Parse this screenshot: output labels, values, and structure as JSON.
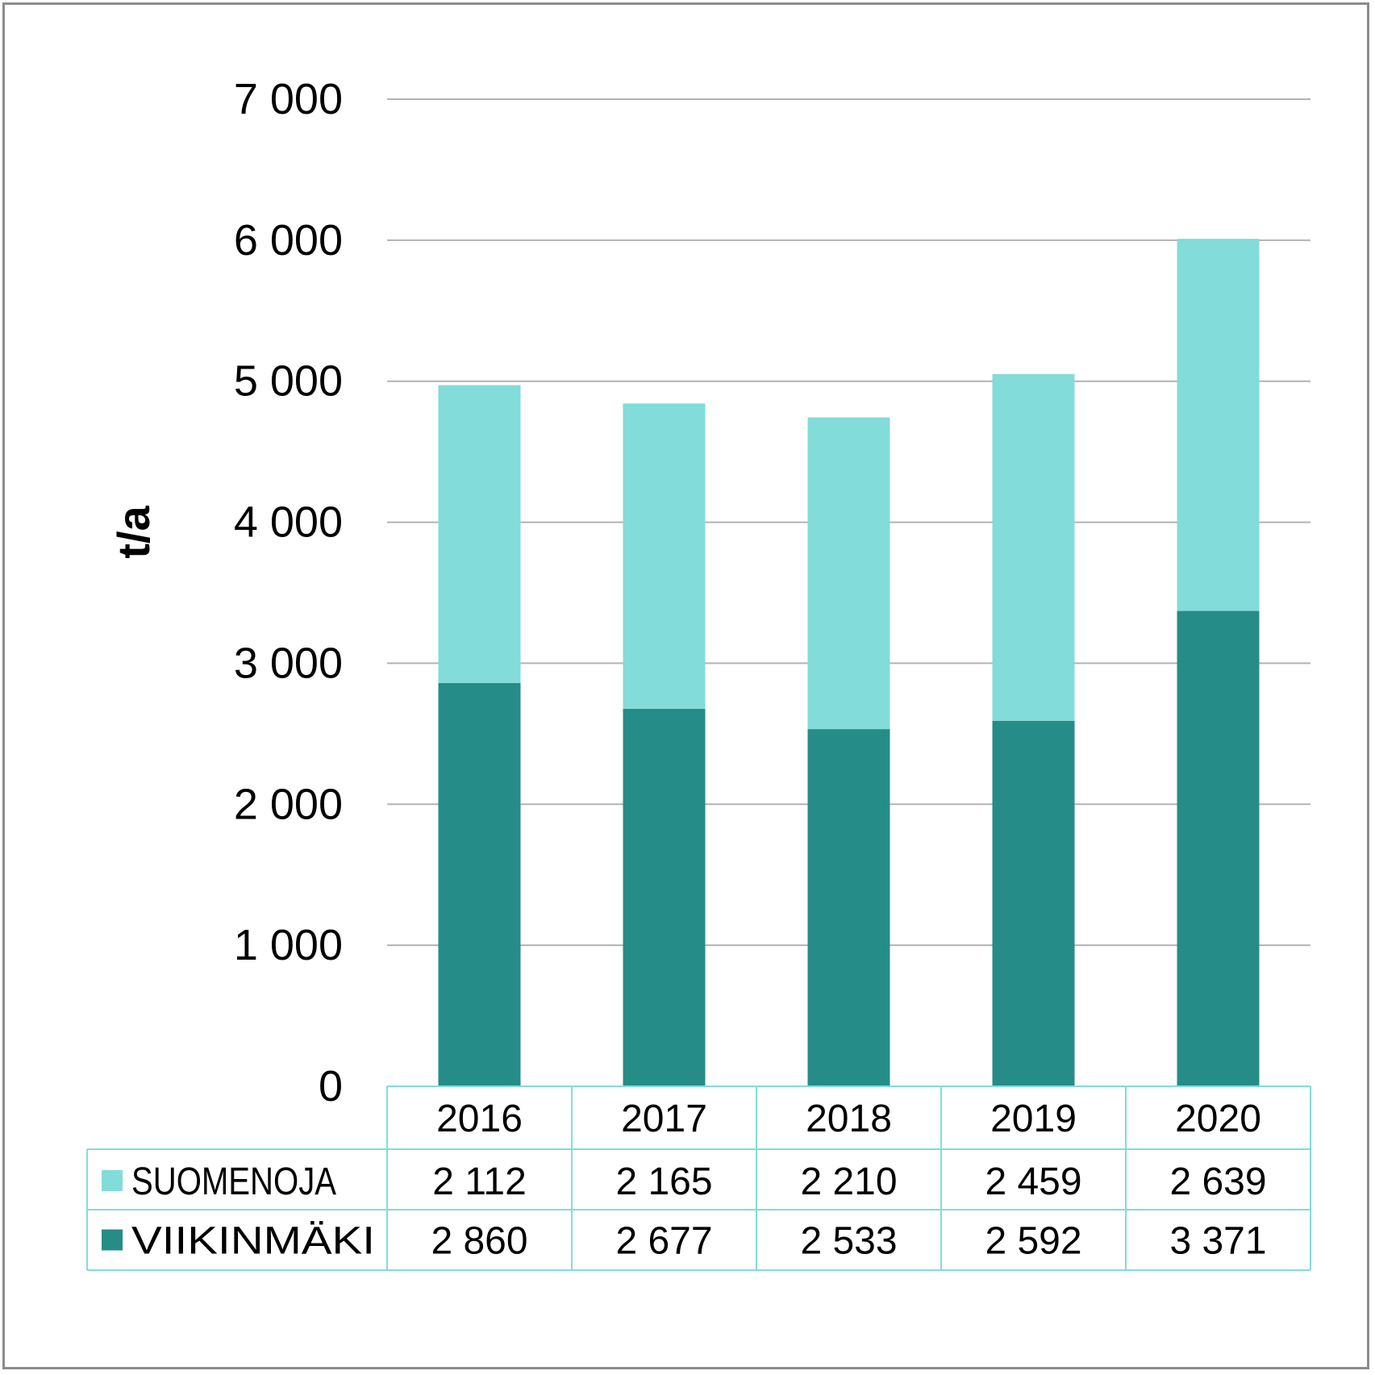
{
  "chart_data": {
    "type": "bar",
    "stacked": true,
    "categories": [
      "2016",
      "2017",
      "2018",
      "2019",
      "2020"
    ],
    "series": [
      {
        "name": "VIIKINMÄKI",
        "color": "#268c87",
        "values": [
          2860,
          2677,
          2533,
          2592,
          3371
        ],
        "labels": [
          "2 860",
          "2 677",
          "2 533",
          "2 592",
          "3 371"
        ]
      },
      {
        "name": "SUOMENOJA",
        "color": "#82dcd9",
        "values": [
          2112,
          2165,
          2210,
          2459,
          2639
        ],
        "labels": [
          "2 112",
          "2 165",
          "2 210",
          "2 459",
          "2 639"
        ]
      }
    ],
    "ylabel": "t/a",
    "ylim": [
      0,
      7000
    ],
    "yticks": [
      0,
      1000,
      2000,
      3000,
      4000,
      5000,
      6000,
      7000
    ],
    "ytick_labels": [
      "0",
      "1 000",
      "2 000",
      "3 000",
      "4 000",
      "5 000",
      "6 000",
      "7 000"
    ],
    "grid": true,
    "legend": "data-table",
    "table_border_color": "#82dcd9",
    "gridline_color": "#b3b3b3"
  }
}
